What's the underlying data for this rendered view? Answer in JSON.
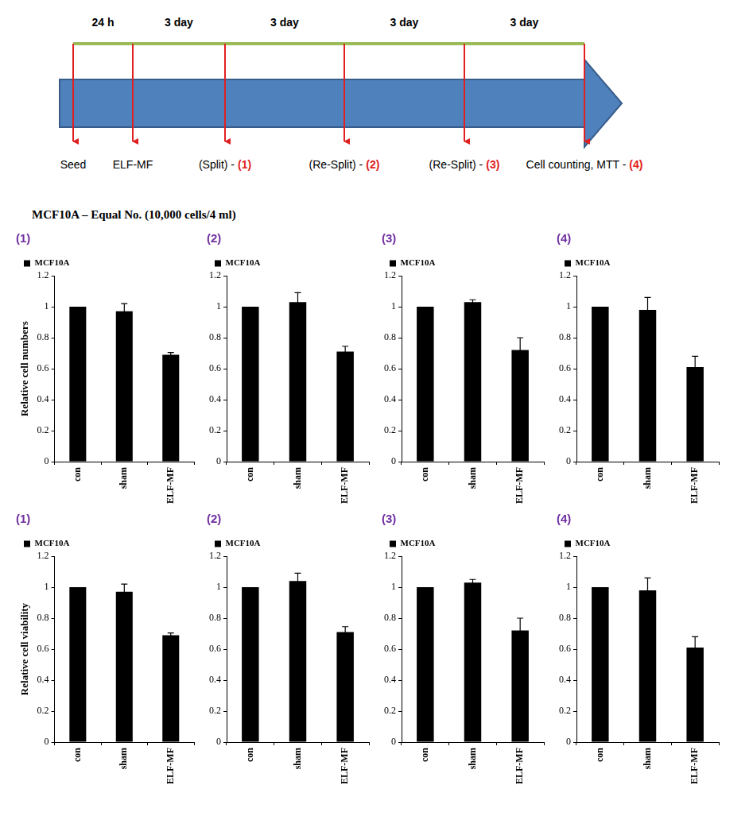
{
  "heading": "MCF10A – Equal No. (10,000 cells/4 ml)",
  "timeline": {
    "intervals": [
      "24 h",
      "3 day",
      "3 day",
      "3 day",
      "3 day"
    ],
    "events": [
      {
        "text": "Seed"
      },
      {
        "text": "ELF-MF"
      },
      {
        "text": "(Split) -",
        "mark": "(1)"
      },
      {
        "text": "(Re-Split) -",
        "mark": "(2)"
      },
      {
        "text": "(Re-Split) -",
        "mark": "(3)"
      },
      {
        "text": "Cell counting, MTT -",
        "mark": "(4)"
      }
    ]
  },
  "chart_data": [
    {
      "type": "bar",
      "title": "(1)",
      "y_label": "Relative cell numbers",
      "categories": [
        "con",
        "sham",
        "ELF-MF"
      ],
      "series": [
        {
          "name": "MCF10A",
          "color": "#000000",
          "values": [
            1,
            0.97,
            0.69
          ],
          "errors": [
            0,
            0.05,
            0.015
          ]
        }
      ],
      "ylim": [
        0,
        1.2
      ],
      "yticks": [
        0,
        0.2,
        0.4,
        0.6,
        0.8,
        1,
        1.2
      ],
      "grid": false,
      "legend": "upper left"
    },
    {
      "type": "bar",
      "title": "(2)",
      "categories": [
        "con",
        "sham",
        "ELF-MF"
      ],
      "series": [
        {
          "name": "MCF10A",
          "color": "#000000",
          "values": [
            1,
            1.03,
            0.71
          ],
          "errors": [
            0,
            0.06,
            0.035
          ]
        }
      ],
      "ylim": [
        0,
        1.2
      ],
      "yticks": [
        0,
        0.2,
        0.4,
        0.6,
        0.8,
        1,
        1.2
      ],
      "grid": false,
      "legend": "upper left"
    },
    {
      "type": "bar",
      "title": "(3)",
      "categories": [
        "con",
        "sham",
        "ELF-MF"
      ],
      "series": [
        {
          "name": "MCF10A",
          "color": "#000000",
          "values": [
            1,
            1.03,
            0.72
          ],
          "errors": [
            0,
            0.015,
            0.08
          ]
        }
      ],
      "ylim": [
        0,
        1.2
      ],
      "yticks": [
        0,
        0.2,
        0.4,
        0.6,
        0.8,
        1,
        1.2
      ],
      "grid": false,
      "legend": "upper left"
    },
    {
      "type": "bar",
      "title": "(4)",
      "categories": [
        "con",
        "sham",
        "ELF-MF"
      ],
      "series": [
        {
          "name": "MCF10A",
          "color": "#000000",
          "values": [
            1,
            0.98,
            0.61
          ],
          "errors": [
            0,
            0.08,
            0.07
          ]
        }
      ],
      "ylim": [
        0,
        1.2
      ],
      "yticks": [
        0,
        0.2,
        0.4,
        0.6,
        0.8,
        1,
        1.2
      ],
      "grid": false,
      "legend": "upper left"
    },
    {
      "type": "bar",
      "title": "(1)",
      "y_label": "Relative cell viability",
      "categories": [
        "con",
        "sham",
        "ELF-MF"
      ],
      "series": [
        {
          "name": "MCF10A",
          "color": "#000000",
          "values": [
            1,
            0.97,
            0.69
          ],
          "errors": [
            0,
            0.05,
            0.015
          ]
        }
      ],
      "ylim": [
        0,
        1.2
      ],
      "yticks": [
        0,
        0.2,
        0.4,
        0.6,
        0.8,
        1,
        1.2
      ],
      "grid": false,
      "legend": "upper left"
    },
    {
      "type": "bar",
      "title": "(2)",
      "categories": [
        "con",
        "sham",
        "ELF-MF"
      ],
      "series": [
        {
          "name": "MCF10A",
          "color": "#000000",
          "values": [
            1,
            1.04,
            0.71
          ],
          "errors": [
            0,
            0.05,
            0.035
          ]
        }
      ],
      "ylim": [
        0,
        1.2
      ],
      "yticks": [
        0,
        0.2,
        0.4,
        0.6,
        0.8,
        1,
        1.2
      ],
      "grid": false,
      "legend": "upper left"
    },
    {
      "type": "bar",
      "title": "(3)",
      "categories": [
        "con",
        "sham",
        "ELF-MF"
      ],
      "series": [
        {
          "name": "MCF10A",
          "color": "#000000",
          "values": [
            1,
            1.03,
            0.72
          ],
          "errors": [
            0,
            0.02,
            0.08
          ]
        }
      ],
      "ylim": [
        0,
        1.2
      ],
      "yticks": [
        0,
        0.2,
        0.4,
        0.6,
        0.8,
        1,
        1.2
      ],
      "grid": false,
      "legend": "upper left"
    },
    {
      "type": "bar",
      "title": "(4)",
      "categories": [
        "con",
        "sham",
        "ELF-MF"
      ],
      "series": [
        {
          "name": "MCF10A",
          "color": "#000000",
          "values": [
            1,
            0.98,
            0.61
          ],
          "errors": [
            0,
            0.08,
            0.07
          ]
        }
      ],
      "ylim": [
        0,
        1.2
      ],
      "yticks": [
        0,
        0.2,
        0.4,
        0.6,
        0.8,
        1,
        1.2
      ],
      "grid": false,
      "legend": "upper left"
    }
  ]
}
